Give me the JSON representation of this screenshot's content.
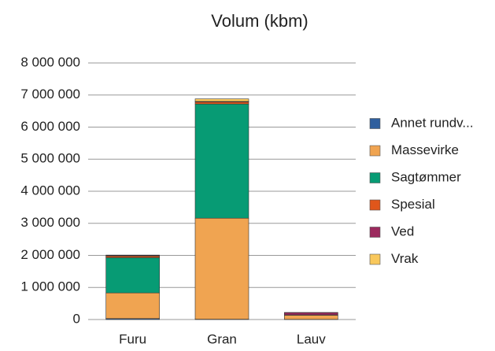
{
  "chart_data": {
    "type": "stacked_bar",
    "title": "Volum (kbm)",
    "categories": [
      "Furu",
      "Gran",
      "Lauv"
    ],
    "series": [
      {
        "name": "Annet rundv...",
        "color": "#2f5f9e",
        "values": [
          30000,
          10000,
          5000
        ]
      },
      {
        "name": "Massevirke",
        "color": "#f0a451",
        "values": [
          800000,
          3150000,
          130000
        ]
      },
      {
        "name": "Sagtømmer",
        "color": "#079b74",
        "values": [
          1100000,
          3560000,
          0
        ]
      },
      {
        "name": "Spesial",
        "color": "#e0561b",
        "values": [
          50000,
          60000,
          10000
        ]
      },
      {
        "name": "Ved",
        "color": "#9c2a5e",
        "values": [
          20000,
          20000,
          70000
        ]
      },
      {
        "name": "Vrak",
        "color": "#f9c85c",
        "values": [
          10000,
          80000,
          5000
        ]
      }
    ],
    "ylim": [
      0,
      8000000
    ],
    "yticks": [
      0,
      {
        "value": 1000000,
        "label": "1 000 000"
      },
      {
        "value": 2000000,
        "label": "2 000 000"
      },
      {
        "value": 3000000,
        "label": "3 000 000"
      },
      {
        "value": 4000000,
        "label": "4 000 000"
      },
      {
        "value": 5000000,
        "label": "5 000 000"
      },
      {
        "value": 6000000,
        "label": "6 000 000"
      },
      {
        "value": 7000000,
        "label": "7 000 000"
      },
      {
        "value": 8000000,
        "label": "8 000 000"
      }
    ],
    "grid": true,
    "legend": "right"
  }
}
